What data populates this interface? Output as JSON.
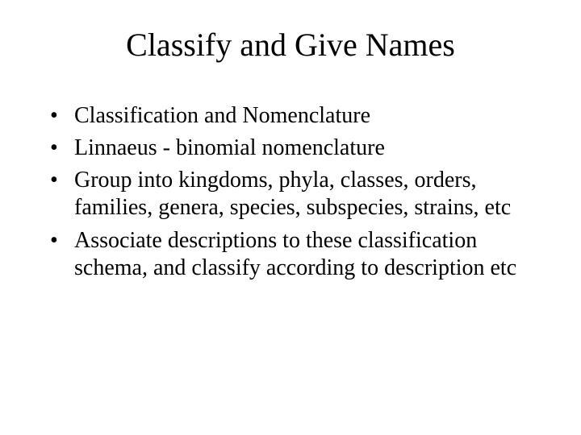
{
  "slide": {
    "title": "Classify and Give Names",
    "bullets": [
      "Classification and Nomenclature",
      "Linnaeus - binomial nomenclature",
      "Group into kingdoms, phyla, classes, orders, families, genera, species, subspecies, strains, etc",
      "Associate descriptions to these classification schema, and classify according to description etc"
    ],
    "background_color": "#ffffff",
    "text_color": "#000000",
    "title_fontsize": 40,
    "body_fontsize": 28,
    "font_family": "Times New Roman"
  }
}
